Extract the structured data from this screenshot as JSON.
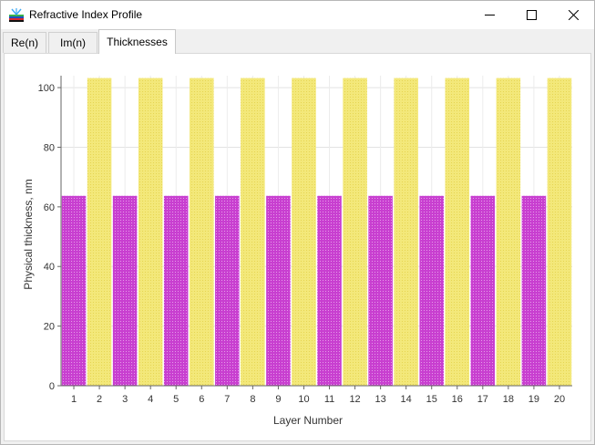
{
  "window": {
    "title": "Refractive Index Profile",
    "icon": "app-icon"
  },
  "tabs": [
    {
      "label": "Re(n)",
      "active": false
    },
    {
      "label": "Im(n)",
      "active": false
    },
    {
      "label": "Thicknesses",
      "active": true
    }
  ],
  "colors": {
    "layer_odd": "#c83fd0",
    "layer_even": "#f3e87a"
  },
  "chart_data": {
    "type": "bar",
    "xlabel": "Layer Number",
    "ylabel": "Physical thickness, nm",
    "categories": [
      "1",
      "2",
      "3",
      "4",
      "5",
      "6",
      "7",
      "8",
      "9",
      "10",
      "11",
      "12",
      "13",
      "14",
      "15",
      "16",
      "17",
      "18",
      "19",
      "20"
    ],
    "values": [
      63.7,
      103.2,
      63.7,
      103.2,
      63.7,
      103.2,
      63.7,
      103.2,
      63.7,
      103.2,
      63.7,
      103.2,
      63.7,
      103.2,
      63.7,
      103.2,
      63.7,
      103.2,
      63.7,
      103.2
    ],
    "ylim": [
      0,
      104
    ],
    "yticks": [
      0,
      20,
      40,
      60,
      80,
      100
    ],
    "grid": true,
    "legend": "none"
  }
}
